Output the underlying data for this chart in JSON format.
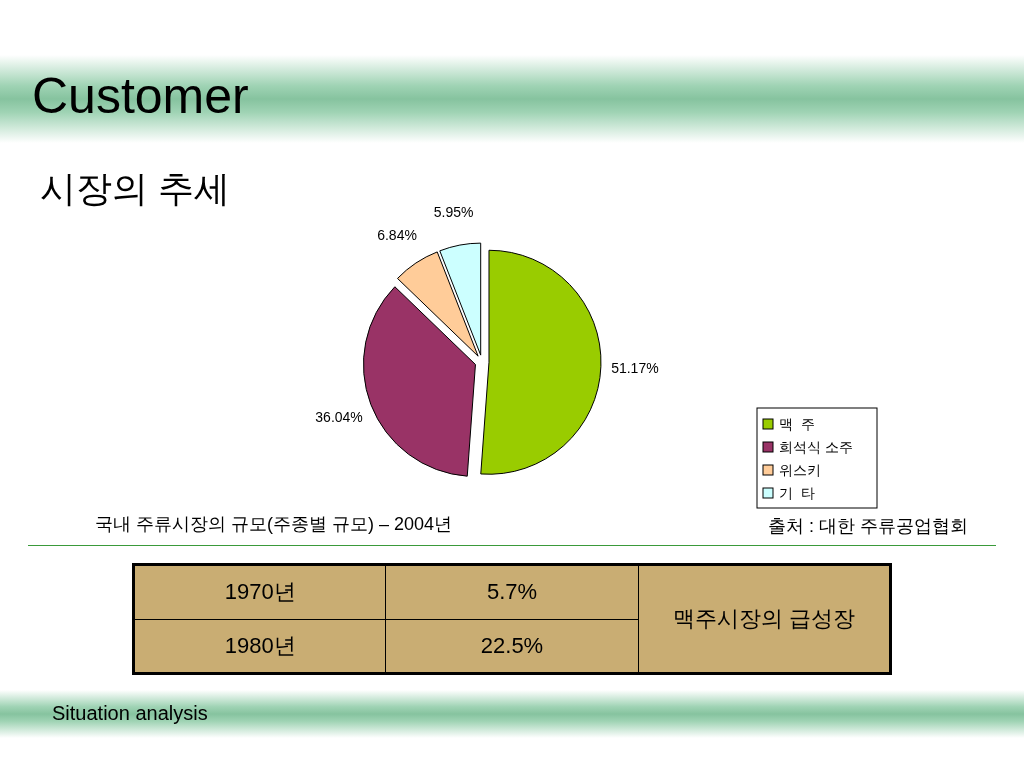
{
  "chart_data": [
    {
      "type": "pie",
      "title": "Customer",
      "subtitle": "시장의 추세",
      "categories": [
        "맥  주",
        "희석식 소주",
        "위스키",
        "기  타"
      ],
      "values": [
        51.17,
        36.04,
        6.84,
        5.95
      ],
      "colors": [
        "#99cc00",
        "#993366",
        "#ffcc99",
        "#ccffff"
      ],
      "value_labels": [
        "51.17%",
        "36.04%",
        "6.84%",
        "5.95%"
      ],
      "legend": "bottom right",
      "annotations": [
        "국내 주류시장의 규모(주종별 규모) – 2004년",
        "출처 : 대한 주류공업협회",
        "Situation analysis"
      ]
    },
    {
      "type": "other",
      "annotations": [
        "1970년",
        "5.7%",
        "1980년",
        "22.5%",
        "맥주시장의 급성장"
      ]
    }
  ]
}
